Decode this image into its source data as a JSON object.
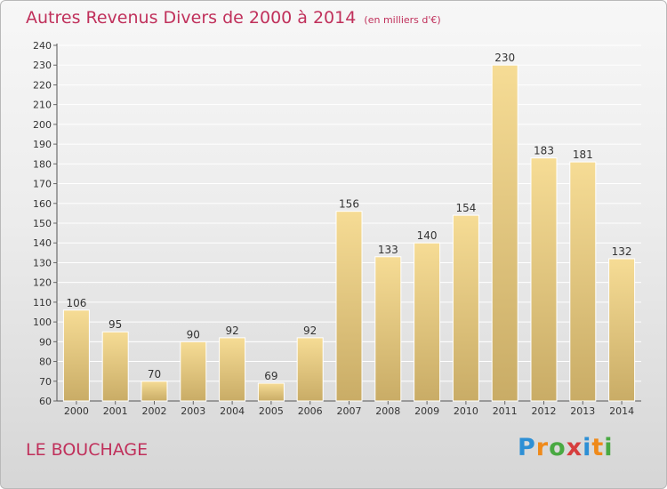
{
  "title": "Autres Revenus Divers de 2000 à 2014",
  "subtitle": "(en milliers d'€)",
  "commune": "LE BOUCHAGE",
  "brand": {
    "text": "Proxiti",
    "letter_colors": [
      "#2d8fd5",
      "#ef8a1a",
      "#49a942",
      "#d63d3d",
      "#2d8fd5",
      "#ef8a1a",
      "#49a942"
    ]
  },
  "colors": {
    "bar_light": "#f6dc95",
    "bar_dark": "#c9ac66",
    "title": "#c0305b"
  },
  "chart_data": {
    "type": "bar",
    "categories": [
      "2000",
      "2001",
      "2002",
      "2003",
      "2004",
      "2005",
      "2006",
      "2007",
      "2008",
      "2009",
      "2010",
      "2011",
      "2012",
      "2013",
      "2014"
    ],
    "values": [
      106,
      95,
      70,
      90,
      92,
      69,
      92,
      156,
      133,
      140,
      154,
      230,
      183,
      181,
      132
    ],
    "ylim": [
      60,
      240
    ],
    "yticks": [
      60,
      70,
      80,
      90,
      100,
      110,
      120,
      130,
      140,
      150,
      160,
      170,
      180,
      190,
      200,
      210,
      220,
      230,
      240
    ],
    "grid": true,
    "title": "Autres Revenus Divers de 2000 à 2014",
    "xlabel": "",
    "ylabel": ""
  }
}
